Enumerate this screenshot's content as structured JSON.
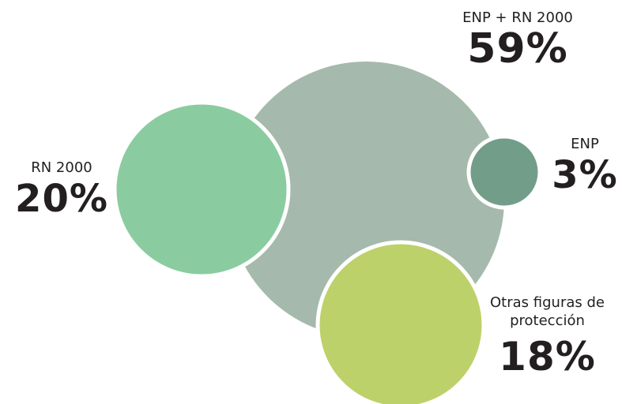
{
  "chart_data": {
    "type": "bubble",
    "title": "",
    "items": [
      {
        "label": "ENP + RN 2000",
        "value_text": "59%",
        "value": 59,
        "color": "#a5b9ac"
      },
      {
        "label": "RN 2000",
        "value_text": "20%",
        "value": 20,
        "color": "#8acca0"
      },
      {
        "label": "ENP",
        "value_text": "3%",
        "value": 3,
        "color": "#729e89"
      },
      {
        "label": "Otras figuras de protección",
        "value_text": "18%",
        "value": 18,
        "color": "#bdd16b"
      }
    ]
  }
}
